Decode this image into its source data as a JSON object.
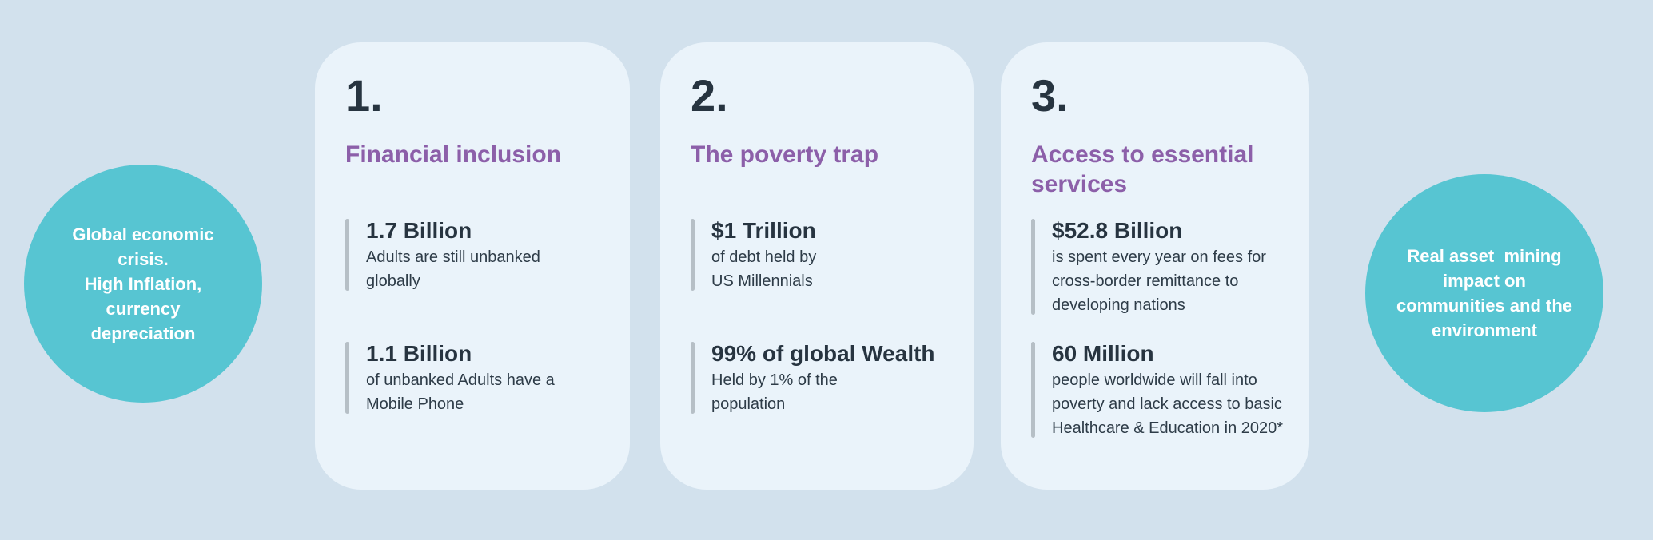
{
  "colors": {
    "background": "#d2e1ed",
    "card_bg": "#eaf3fa",
    "bubble_teal": "#57c5d2",
    "heading_purple": "#8c5fa9",
    "dark_navy": "#273440",
    "desc_navy": "#2e3c48",
    "stat_bar_gray": "#b6bfc6",
    "white": "#ffffff"
  },
  "left_bubble": {
    "text": "Global economic\ncrisis.\nHigh Inflation,\ncurrency\ndepreciation"
  },
  "right_bubble": {
    "text": "Real asset  mining\nimpact on\ncommunities and the\nenvironment"
  },
  "cards": [
    {
      "number": "1.",
      "title": "Financial inclusion",
      "stats": [
        {
          "value": "1.7 Billion",
          "description": "Adults are still unbanked\nglobally"
        },
        {
          "value": "1.1 Billion",
          "description": "of unbanked Adults have a\nMobile Phone"
        }
      ]
    },
    {
      "number": "2.",
      "title": "The poverty trap",
      "stats": [
        {
          "value": "$1 Trillion",
          "description": "of debt held by\nUS Millennials"
        },
        {
          "value": "99% of global Wealth",
          "description": "Held by 1% of the\npopulation"
        }
      ]
    },
    {
      "number": "3.",
      "title": "Access to essential\nservices",
      "stats": [
        {
          "value": "$52.8 Billion",
          "description": "is spent every year on fees for\ncross-border remittance to\ndeveloping nations"
        },
        {
          "value": "60 Million",
          "description": "people worldwide will fall into\npoverty and lack access to basic\nHealthcare & Education in 2020*"
        }
      ]
    }
  ]
}
